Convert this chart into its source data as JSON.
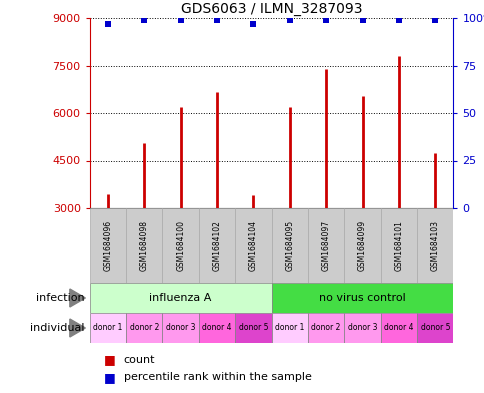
{
  "title": "GDS6063 / ILMN_3287093",
  "samples": [
    "GSM1684096",
    "GSM1684098",
    "GSM1684100",
    "GSM1684102",
    "GSM1684104",
    "GSM1684095",
    "GSM1684097",
    "GSM1684099",
    "GSM1684101",
    "GSM1684103"
  ],
  "counts": [
    3450,
    5050,
    6200,
    6650,
    3420,
    6200,
    7400,
    6550,
    7800,
    4750
  ],
  "percentile_ranks": [
    97,
    99,
    99,
    99,
    97,
    99,
    99,
    99,
    99,
    99
  ],
  "ylim_left": [
    3000,
    9000
  ],
  "ylim_right": [
    0,
    100
  ],
  "yticks_left": [
    3000,
    4500,
    6000,
    7500,
    9000
  ],
  "yticks_right": [
    0,
    25,
    50,
    75,
    100
  ],
  "bar_color": "#cc0000",
  "dot_color": "#0000cc",
  "infection_groups": [
    {
      "label": "influenza A",
      "start": 0,
      "end": 5,
      "color": "#ccffcc"
    },
    {
      "label": "no virus control",
      "start": 5,
      "end": 10,
      "color": "#44dd44"
    }
  ],
  "individual_colors": [
    "#ffccff",
    "#ff99ee",
    "#ff99ee",
    "#ff66dd",
    "#dd44cc",
    "#ffccff",
    "#ff99ee",
    "#ff99ee",
    "#ff66dd",
    "#dd44cc"
  ],
  "sample_box_color": "#cccccc",
  "sample_box_border": "#aaaaaa",
  "legend_count_color": "#cc0000",
  "legend_dot_color": "#0000cc",
  "infection_label": "infection",
  "individual_label": "individual",
  "grid_color": "black",
  "left_tick_color": "#cc0000",
  "right_tick_color": "#0000cc",
  "fig_width": 4.85,
  "fig_height": 3.93,
  "dpi": 100
}
